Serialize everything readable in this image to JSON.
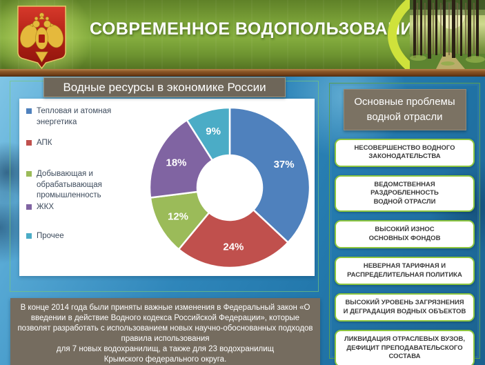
{
  "header": {
    "title": "СОВРЕМЕННОЕ ВОДОПОЛЬЗОВАНИЕ",
    "emblem": "russia-coat-of-arms",
    "photo": "forest-path-photo"
  },
  "chart_panel": {
    "title": "Водные ресурсы в экономике России"
  },
  "chart_data": {
    "type": "pie",
    "subtype": "donut",
    "title": "Водные ресурсы в экономике России",
    "categories": [
      "Тепловая и атомная энергетика",
      "АПК",
      "Добывающая и обрабатывающая промышленность",
      "ЖКХ",
      "Прочее"
    ],
    "values": [
      37,
      24,
      12,
      18,
      9
    ],
    "unit": "%",
    "labels": [
      "37%",
      "24%",
      "12%",
      "18%",
      "9%"
    ],
    "colors": [
      "#4F81BD",
      "#C0504D",
      "#9BBB59",
      "#8064A2",
      "#4BACC6"
    ],
    "legend_position": "left",
    "start_angle_deg": 0,
    "direction": "clockwise",
    "donut_hole_ratio": 0.4
  },
  "problems_panel": {
    "title": "Основные проблемы водной отрасли",
    "items": [
      "НЕСОВЕРШЕНСТВО  ВОДНОГО\nЗАКОНОДАТЕЛЬСТВА",
      "ВЕДОМСТВЕННАЯ\nРАЗДРОБЛЕННОСТЬ\nВОДНОЙ ОТРАСЛИ",
      "ВЫСОКИЙ ИЗНОС\nОСНОВНЫХ  ФОНДОВ",
      "НЕВЕРНАЯ ТАРИФНАЯ И\nРАСПРЕДЕЛИТЕЛЬНАЯ  ПОЛИТИКА",
      "ВЫСОКИЙ УРОВЕНЬ  ЗАГРЯЗНЕНИЯ\nИ ДЕГРАДАЦИЯ ВОДНЫХ  ОБЪЕКТОВ",
      "ЛИКВИДАЦИЯ ОТРАСЛЕВЫХ  ВУЗОВ,\nДЕФИЦИТ  ПРЕПОДАВАТЕЛЬСКОГО\nСОСТАВА"
    ]
  },
  "footnote": {
    "text": "В конце 2014 года были приняты  важные изменения  в Федеральный  закон «О\nвведении  в действие  Водного кодекса Российской  Федерации»,  которые\nпозволят разработать с использованием  новых научно-обоснованных  подходов\nправила использования\nдля 7 новых водохранилищ,   а также для 23 водохранилищ\nКрымского федерального округа."
  },
  "theme_colors": {
    "header_green": "#79A037",
    "wood_brown": "#8A5526",
    "taupe_box": "#756C5F",
    "panel_border_green": "#8DC63F",
    "body_blue": "#2F86BA",
    "title_text": "#FFFFFF"
  }
}
